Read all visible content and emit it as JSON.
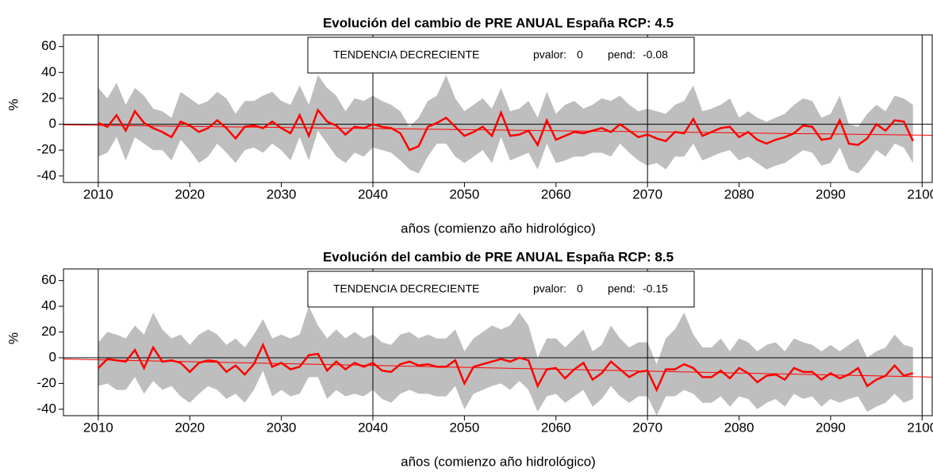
{
  "chart_data": [
    {
      "type": "band-line",
      "title": "Evolución del cambio de PRE  ANUAL España   RCP: 4.5",
      "xlabel": "años (comienzo año hidrológico)",
      "ylabel": "%",
      "xlim": [
        2006.2,
        2101.1
      ],
      "xticks": [
        2010,
        2020,
        2030,
        2040,
        2050,
        2060,
        2070,
        2080,
        2090,
        2100
      ],
      "ylim": [
        -45,
        69
      ],
      "yticks": [
        -40,
        -20,
        0,
        20,
        40,
        60
      ],
      "vlines": [
        2010,
        2040,
        2070,
        2100
      ],
      "hline": 0,
      "annotation": {
        "label": "TENDENCIA DECRECIENTE",
        "pvalor_label": "pvalor:",
        "pvalor": 0,
        "pend_label": "pend:",
        "pend": -0.08
      },
      "x": [
        2010,
        2011,
        2012,
        2013,
        2014,
        2015,
        2016,
        2017,
        2018,
        2019,
        2020,
        2021,
        2022,
        2023,
        2024,
        2025,
        2026,
        2027,
        2028,
        2029,
        2030,
        2031,
        2032,
        2033,
        2034,
        2035,
        2036,
        2037,
        2038,
        2039,
        2040,
        2041,
        2042,
        2043,
        2044,
        2045,
        2046,
        2047,
        2048,
        2049,
        2050,
        2051,
        2052,
        2053,
        2054,
        2055,
        2056,
        2057,
        2058,
        2059,
        2060,
        2061,
        2062,
        2063,
        2064,
        2065,
        2066,
        2067,
        2068,
        2069,
        2070,
        2071,
        2072,
        2073,
        2074,
        2075,
        2076,
        2077,
        2078,
        2079,
        2080,
        2081,
        2082,
        2083,
        2084,
        2085,
        2086,
        2087,
        2088,
        2089,
        2090,
        2091,
        2092,
        2093,
        2094,
        2095,
        2096,
        2097,
        2098,
        2099
      ],
      "band": {
        "color": "#bebebe",
        "upper": [
          28,
          20,
          32,
          15,
          28,
          22,
          12,
          10,
          5,
          25,
          20,
          15,
          18,
          25,
          20,
          8,
          18,
          18,
          22,
          25,
          18,
          15,
          30,
          15,
          38,
          28,
          22,
          10,
          20,
          18,
          22,
          18,
          15,
          10,
          -2,
          5,
          18,
          22,
          38,
          20,
          10,
          15,
          20,
          12,
          28,
          10,
          12,
          18,
          5,
          25,
          8,
          15,
          18,
          12,
          15,
          20,
          18,
          22,
          15,
          10,
          12,
          10,
          8,
          15,
          18,
          30,
          10,
          12,
          15,
          20,
          5,
          10,
          5,
          2,
          5,
          8,
          15,
          20,
          18,
          5,
          8,
          22,
          0,
          -2,
          8,
          15,
          10,
          22,
          20,
          15
        ],
        "lower": [
          -25,
          -22,
          -10,
          -28,
          -10,
          -15,
          -20,
          -20,
          -28,
          -12,
          -20,
          -30,
          -25,
          -15,
          -22,
          -30,
          -20,
          -18,
          -22,
          -15,
          -20,
          -28,
          -10,
          -28,
          -5,
          -15,
          -25,
          -30,
          -22,
          -25,
          -18,
          -20,
          -22,
          -28,
          -35,
          -38,
          -25,
          -15,
          -15,
          -25,
          -30,
          -25,
          -20,
          -30,
          -10,
          -28,
          -25,
          -22,
          -35,
          -15,
          -30,
          -28,
          -25,
          -25,
          -22,
          -22,
          -25,
          -15,
          -22,
          -28,
          -32,
          -30,
          -35,
          -25,
          -25,
          -15,
          -28,
          -25,
          -22,
          -20,
          -28,
          -25,
          -30,
          -35,
          -32,
          -30,
          -25,
          -20,
          -22,
          -32,
          -30,
          -18,
          -35,
          -38,
          -30,
          -20,
          -25,
          -15,
          -18,
          -30
        ]
      },
      "mean": {
        "color": "#ff0000",
        "values": [
          1,
          -2,
          7,
          -5,
          10,
          1,
          -3,
          -6,
          -10,
          2,
          -1,
          -6,
          -3,
          3,
          -3,
          -11,
          -2,
          -1,
          -3,
          2,
          -3,
          -7,
          7,
          -9,
          11,
          2,
          -1,
          -8,
          -2,
          -3,
          0,
          -2,
          -3,
          -7,
          -20,
          -17,
          -2,
          1,
          5,
          -2,
          -9,
          -6,
          -2,
          -9,
          9,
          -9,
          -8,
          -5,
          -16,
          3,
          -12,
          -9,
          -6,
          -7,
          -5,
          -3,
          -6,
          0,
          -5,
          -10,
          -8,
          -11,
          -13,
          -6,
          -7,
          4,
          -9,
          -6,
          -3,
          -2,
          -10,
          -6,
          -12,
          -15,
          -12,
          -10,
          -7,
          -1,
          -2,
          -12,
          -11,
          3,
          -15,
          -16,
          -11,
          0,
          -5,
          3,
          2,
          -13
        ]
      },
      "trend": {
        "color": "#ff0000",
        "x": [
          2006.2,
          2101.1
        ],
        "values": [
          -0.5,
          -8.5
        ]
      }
    },
    {
      "type": "band-line",
      "title": "Evolución del cambio de PRE  ANUAL España   RCP: 8.5",
      "xlabel": "años (comienzo año hidrológico)",
      "ylabel": "%",
      "xlim": [
        2006.2,
        2101.1
      ],
      "xticks": [
        2010,
        2020,
        2030,
        2040,
        2050,
        2060,
        2070,
        2080,
        2090,
        2100
      ],
      "ylim": [
        -45,
        69
      ],
      "yticks": [
        -40,
        -20,
        0,
        20,
        40,
        60
      ],
      "vlines": [
        2010,
        2040,
        2070,
        2100
      ],
      "hline": 0,
      "annotation": {
        "label": "TENDENCIA DECRECIENTE",
        "pvalor_label": "pvalor:",
        "pvalor": 0,
        "pend_label": "pend:",
        "pend": -0.15
      },
      "x": [
        2010,
        2011,
        2012,
        2013,
        2014,
        2015,
        2016,
        2017,
        2018,
        2019,
        2020,
        2021,
        2022,
        2023,
        2024,
        2025,
        2026,
        2027,
        2028,
        2029,
        2030,
        2031,
        2032,
        2033,
        2034,
        2035,
        2036,
        2037,
        2038,
        2039,
        2040,
        2041,
        2042,
        2043,
        2044,
        2045,
        2046,
        2047,
        2048,
        2049,
        2050,
        2051,
        2052,
        2053,
        2054,
        2055,
        2056,
        2057,
        2058,
        2059,
        2060,
        2061,
        2062,
        2063,
        2064,
        2065,
        2066,
        2067,
        2068,
        2069,
        2070,
        2071,
        2072,
        2073,
        2074,
        2075,
        2076,
        2077,
        2078,
        2079,
        2080,
        2081,
        2082,
        2083,
        2084,
        2085,
        2086,
        2087,
        2088,
        2089,
        2090,
        2091,
        2092,
        2093,
        2094,
        2095,
        2096,
        2097,
        2098,
        2099
      ],
      "band": {
        "color": "#bebebe",
        "upper": [
          12,
          20,
          18,
          15,
          25,
          18,
          35,
          22,
          15,
          18,
          10,
          18,
          22,
          18,
          10,
          15,
          8,
          18,
          30,
          15,
          18,
          15,
          18,
          40,
          25,
          15,
          22,
          15,
          20,
          15,
          18,
          12,
          10,
          18,
          20,
          15,
          18,
          15,
          15,
          22,
          5,
          15,
          20,
          25,
          22,
          25,
          35,
          25,
          0,
          15,
          15,
          8,
          15,
          22,
          5,
          10,
          25,
          15,
          8,
          12,
          12,
          -5,
          15,
          22,
          35,
          18,
          8,
          8,
          15,
          5,
          15,
          12,
          5,
          10,
          12,
          5,
          15,
          12,
          10,
          5,
          10,
          5,
          10,
          15,
          0,
          5,
          8,
          18,
          10,
          8
        ],
        "lower": [
          -22,
          -20,
          -25,
          -25,
          -15,
          -28,
          -18,
          -25,
          -22,
          -30,
          -35,
          -28,
          -22,
          -25,
          -32,
          -28,
          -35,
          -25,
          -10,
          -30,
          -25,
          -30,
          -28,
          -15,
          -15,
          -32,
          -25,
          -30,
          -28,
          -30,
          -25,
          -32,
          -35,
          -28,
          -25,
          -28,
          -28,
          -30,
          -30,
          -22,
          -40,
          -28,
          -25,
          -22,
          -20,
          -25,
          -18,
          -25,
          -42,
          -30,
          -28,
          -35,
          -30,
          -25,
          -38,
          -32,
          -22,
          -30,
          -35,
          -30,
          -30,
          -45,
          -30,
          -30,
          -25,
          -28,
          -35,
          -35,
          -30,
          -38,
          -30,
          -32,
          -40,
          -35,
          -32,
          -38,
          -28,
          -32,
          -30,
          -38,
          -32,
          -35,
          -32,
          -30,
          -42,
          -38,
          -35,
          -28,
          -35,
          -32
        ]
      },
      "mean": {
        "color": "#ff0000",
        "values": [
          -8,
          -1,
          -2,
          -3,
          6,
          -8,
          8,
          -3,
          -2,
          -4,
          -11,
          -4,
          -2,
          -3,
          -11,
          -6,
          -13,
          -5,
          10,
          -7,
          -4,
          -9,
          -7,
          2,
          3,
          -10,
          -3,
          -9,
          -4,
          -7,
          -4,
          -10,
          -11,
          -5,
          -3,
          -6,
          -5,
          -7,
          -7,
          -2,
          -20,
          -7,
          -5,
          -3,
          -1,
          -3,
          0,
          -2,
          -22,
          -9,
          -8,
          -16,
          -9,
          -4,
          -17,
          -12,
          -3,
          -9,
          -15,
          -11,
          -10,
          -25,
          -9,
          -9,
          -5,
          -8,
          -15,
          -15,
          -10,
          -16,
          -8,
          -12,
          -19,
          -14,
          -13,
          -17,
          -8,
          -11,
          -11,
          -17,
          -12,
          -16,
          -13,
          -8,
          -22,
          -17,
          -14,
          -6,
          -14,
          -12
        ]
      },
      "trend": {
        "color": "#ff0000",
        "x": [
          2006.2,
          2101.1
        ],
        "values": [
          -1,
          -15
        ]
      }
    }
  ]
}
